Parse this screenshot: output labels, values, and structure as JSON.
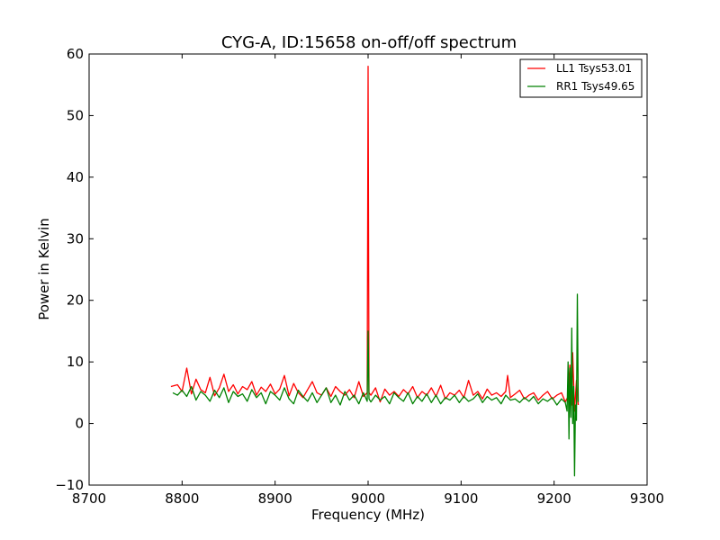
{
  "chart_data": {
    "type": "line",
    "title": "CYG-A, ID:15658 on-off/off spectrum",
    "xlabel": "Frequency (MHz)",
    "ylabel": "Power in Kelvin",
    "xlim": [
      8700,
      9300
    ],
    "ylim": [
      -10,
      60
    ],
    "xticks": [
      8700,
      8800,
      8900,
      9000,
      9100,
      9200,
      9300
    ],
    "yticks": [
      -10,
      0,
      10,
      20,
      30,
      40,
      50,
      60
    ],
    "grid": false,
    "legend_position": "top-right",
    "series": [
      {
        "name": "LL1 Tsys53.01",
        "color": "#ff0000",
        "x": [
          8788,
          8795,
          8800,
          8805,
          8810,
          8815,
          8820,
          8825,
          8830,
          8835,
          8840,
          8845,
          8850,
          8855,
          8860,
          8865,
          8870,
          8875,
          8880,
          8885,
          8890,
          8895,
          8900,
          8905,
          8910,
          8915,
          8920,
          8925,
          8930,
          8935,
          8940,
          8945,
          8950,
          8955,
          8960,
          8965,
          8970,
          8975,
          8980,
          8985,
          8990,
          8995,
          8999,
          9000,
          9001,
          9003,
          9008,
          9013,
          9018,
          9023,
          9028,
          9033,
          9038,
          9043,
          9048,
          9053,
          9058,
          9063,
          9068,
          9073,
          9078,
          9083,
          9088,
          9093,
          9098,
          9103,
          9108,
          9113,
          9118,
          9123,
          9128,
          9133,
          9138,
          9143,
          9148,
          9150,
          9153,
          9158,
          9163,
          9168,
          9173,
          9178,
          9183,
          9188,
          9193,
          9198,
          9203,
          9208,
          9212,
          9215,
          9217,
          9219,
          9220,
          9222,
          9224,
          9226
        ],
        "values": [
          6.0,
          6.3,
          5.2,
          9.0,
          4.8,
          7.2,
          5.5,
          5.0,
          7.5,
          4.5,
          5.8,
          8.0,
          5.2,
          6.3,
          4.8,
          6.0,
          5.5,
          6.8,
          4.6,
          5.9,
          5.2,
          6.4,
          4.8,
          5.6,
          7.8,
          4.5,
          6.5,
          5.0,
          4.2,
          5.5,
          6.8,
          5.0,
          4.6,
          5.8,
          4.4,
          6.0,
          5.2,
          4.6,
          5.5,
          4.2,
          6.8,
          4.4,
          5.0,
          58.0,
          5.0,
          4.6,
          5.8,
          3.5,
          5.6,
          4.6,
          5.2,
          4.4,
          5.5,
          4.8,
          6.0,
          4.2,
          5.2,
          4.6,
          5.8,
          4.4,
          6.2,
          4.0,
          5.0,
          4.6,
          5.4,
          4.2,
          7.0,
          4.6,
          5.2,
          4.0,
          5.6,
          4.6,
          5.0,
          4.4,
          5.2,
          7.8,
          4.2,
          4.8,
          5.4,
          4.0,
          4.6,
          5.0,
          3.8,
          4.6,
          5.2,
          4.0,
          4.6,
          5.0,
          3.5,
          4.4,
          9.5,
          3.0,
          11.5,
          2.0,
          7.0,
          3.0
        ]
      },
      {
        "name": "RR1 Tsys49.65",
        "color": "#008000",
        "x": [
          8790,
          8795,
          8800,
          8805,
          8810,
          8815,
          8820,
          8825,
          8830,
          8835,
          8840,
          8845,
          8850,
          8855,
          8860,
          8865,
          8870,
          8875,
          8880,
          8885,
          8890,
          8895,
          8900,
          8905,
          8910,
          8915,
          8920,
          8925,
          8930,
          8935,
          8940,
          8945,
          8950,
          8955,
          8960,
          8965,
          8970,
          8975,
          8980,
          8985,
          8990,
          8995,
          8999,
          9000,
          9001,
          9003,
          9008,
          9013,
          9018,
          9023,
          9028,
          9033,
          9038,
          9043,
          9048,
          9053,
          9058,
          9063,
          9068,
          9073,
          9078,
          9083,
          9088,
          9093,
          9098,
          9103,
          9108,
          9113,
          9118,
          9123,
          9128,
          9133,
          9138,
          9143,
          9148,
          9153,
          9158,
          9163,
          9168,
          9173,
          9178,
          9183,
          9188,
          9193,
          9198,
          9203,
          9208,
          9212,
          9214,
          9215,
          9216,
          9217,
          9218,
          9219,
          9220,
          9221,
          9222,
          9223,
          9224,
          9225,
          9226
        ],
        "values": [
          5.0,
          4.6,
          5.4,
          4.4,
          6.0,
          3.8,
          5.2,
          4.6,
          3.6,
          5.4,
          4.2,
          5.8,
          3.4,
          5.2,
          4.4,
          4.8,
          3.6,
          5.5,
          4.2,
          5.0,
          3.2,
          5.2,
          4.6,
          3.8,
          5.8,
          4.0,
          3.2,
          5.4,
          4.4,
          3.6,
          5.0,
          3.4,
          4.6,
          5.8,
          3.4,
          4.6,
          3.0,
          5.2,
          3.8,
          4.6,
          3.2,
          5.0,
          3.6,
          15.0,
          4.0,
          3.5,
          4.6,
          3.8,
          4.4,
          3.2,
          5.0,
          4.2,
          3.6,
          5.0,
          3.2,
          4.4,
          3.6,
          4.8,
          3.4,
          4.6,
          3.2,
          4.2,
          3.8,
          4.6,
          3.4,
          4.4,
          3.6,
          4.0,
          4.8,
          3.4,
          4.4,
          3.8,
          4.2,
          3.2,
          4.6,
          3.8,
          4.0,
          3.4,
          4.2,
          3.6,
          4.4,
          3.2,
          4.0,
          3.6,
          4.2,
          3.0,
          4.0,
          3.4,
          2.0,
          10.0,
          -2.5,
          9.0,
          1.0,
          15.5,
          0.0,
          6.0,
          -8.5,
          3.0,
          0.5,
          21.0,
          3.5
        ]
      }
    ]
  }
}
